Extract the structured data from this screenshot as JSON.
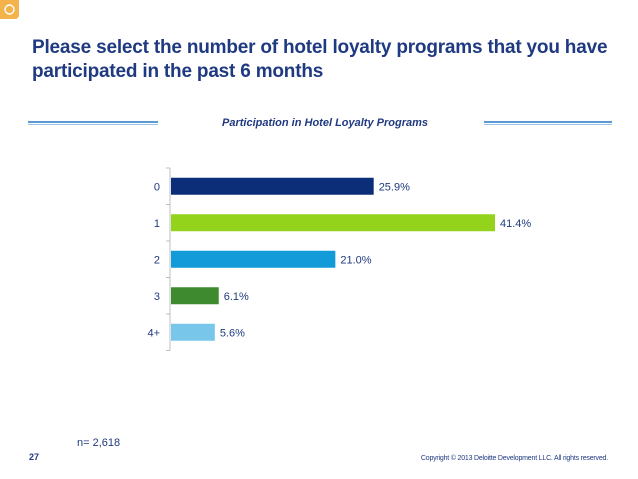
{
  "slide": {
    "title": "Please select the number of hotel loyalty programs that you have participated in the past 6 months",
    "sample_size": "n= 2,618",
    "page_number": "27",
    "copyright": "Copyright © 2013 Deloitte Development LLC. All rights reserved."
  },
  "colors": {
    "title": "#1f3a80",
    "rule": "#5a9bd5",
    "logo": "#f3b24a"
  },
  "chart_data": {
    "type": "bar",
    "orientation": "horizontal",
    "title": "Participation  in Hotel Loyalty Programs",
    "categories": [
      "0",
      "1",
      "2",
      "3",
      "4+"
    ],
    "values": [
      25.9,
      41.4,
      21.0,
      6.1,
      5.6
    ],
    "labels": [
      "25.9%",
      "41.4%",
      "21.0%",
      "6.1%",
      "5.6%"
    ],
    "colors": [
      "#0c2e78",
      "#94d31b",
      "#139ad8",
      "#3e8a2e",
      "#78c7ea"
    ],
    "xlim": [
      0,
      41.4
    ],
    "xlabel": "",
    "ylabel": "",
    "grid": false
  }
}
